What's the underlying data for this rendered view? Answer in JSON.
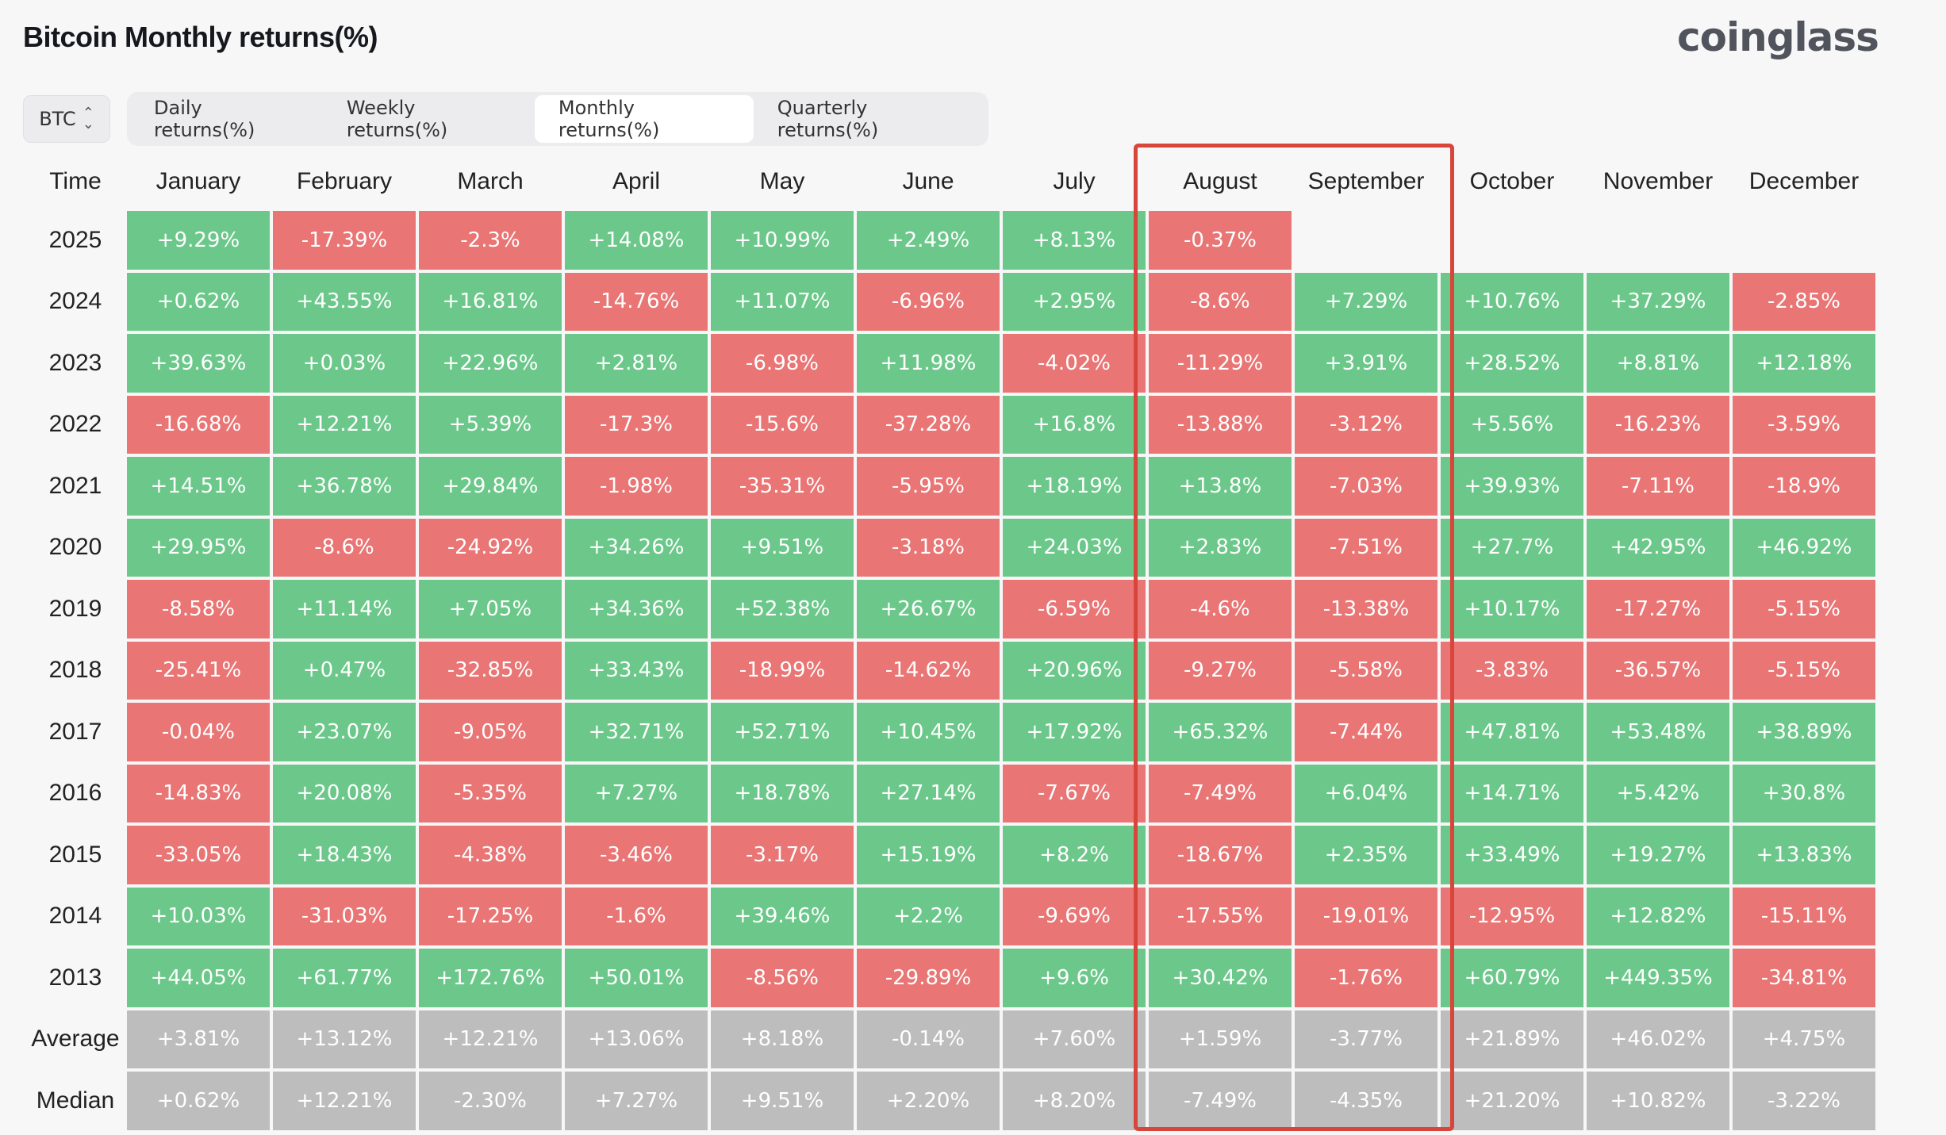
{
  "title": "Bitcoin Monthly returns(%)",
  "logo": "coinglass",
  "coin_select": {
    "value": "BTC",
    "icon": "up-down-chevron-icon"
  },
  "tabs": [
    {
      "label": "Daily returns(%)",
      "active": false
    },
    {
      "label": "Weekly returns(%)",
      "active": false
    },
    {
      "label": "Monthly returns(%)",
      "active": true
    },
    {
      "label": "Quarterly returns(%)",
      "active": false
    }
  ],
  "colors": {
    "positive": "#6cc88a",
    "negative": "#e97575",
    "stat": "#bdbdbd",
    "highlight": "#d8453b"
  },
  "table": {
    "columns": [
      "Time",
      "January",
      "February",
      "March",
      "April",
      "May",
      "June",
      "July",
      "August",
      "September",
      "October",
      "November",
      "December"
    ],
    "rows": [
      {
        "label": "2025",
        "values": [
          "+9.29%",
          "-17.39%",
          "-2.3%",
          "+14.08%",
          "+10.99%",
          "+2.49%",
          "+8.13%",
          "-0.37%",
          "",
          "",
          "",
          ""
        ]
      },
      {
        "label": "2024",
        "values": [
          "+0.62%",
          "+43.55%",
          "+16.81%",
          "-14.76%",
          "+11.07%",
          "-6.96%",
          "+2.95%",
          "-8.6%",
          "+7.29%",
          "+10.76%",
          "+37.29%",
          "-2.85%"
        ]
      },
      {
        "label": "2023",
        "values": [
          "+39.63%",
          "+0.03%",
          "+22.96%",
          "+2.81%",
          "-6.98%",
          "+11.98%",
          "-4.02%",
          "-11.29%",
          "+3.91%",
          "+28.52%",
          "+8.81%",
          "+12.18%"
        ]
      },
      {
        "label": "2022",
        "values": [
          "-16.68%",
          "+12.21%",
          "+5.39%",
          "-17.3%",
          "-15.6%",
          "-37.28%",
          "+16.8%",
          "-13.88%",
          "-3.12%",
          "+5.56%",
          "-16.23%",
          "-3.59%"
        ]
      },
      {
        "label": "2021",
        "values": [
          "+14.51%",
          "+36.78%",
          "+29.84%",
          "-1.98%",
          "-35.31%",
          "-5.95%",
          "+18.19%",
          "+13.8%",
          "-7.03%",
          "+39.93%",
          "-7.11%",
          "-18.9%"
        ]
      },
      {
        "label": "2020",
        "values": [
          "+29.95%",
          "-8.6%",
          "-24.92%",
          "+34.26%",
          "+9.51%",
          "-3.18%",
          "+24.03%",
          "+2.83%",
          "-7.51%",
          "+27.7%",
          "+42.95%",
          "+46.92%"
        ]
      },
      {
        "label": "2019",
        "values": [
          "-8.58%",
          "+11.14%",
          "+7.05%",
          "+34.36%",
          "+52.38%",
          "+26.67%",
          "-6.59%",
          "-4.6%",
          "-13.38%",
          "+10.17%",
          "-17.27%",
          "-5.15%"
        ]
      },
      {
        "label": "2018",
        "values": [
          "-25.41%",
          "+0.47%",
          "-32.85%",
          "+33.43%",
          "-18.99%",
          "-14.62%",
          "+20.96%",
          "-9.27%",
          "-5.58%",
          "-3.83%",
          "-36.57%",
          "-5.15%"
        ]
      },
      {
        "label": "2017",
        "values": [
          "-0.04%",
          "+23.07%",
          "-9.05%",
          "+32.71%",
          "+52.71%",
          "+10.45%",
          "+17.92%",
          "+65.32%",
          "-7.44%",
          "+47.81%",
          "+53.48%",
          "+38.89%"
        ]
      },
      {
        "label": "2016",
        "values": [
          "-14.83%",
          "+20.08%",
          "-5.35%",
          "+7.27%",
          "+18.78%",
          "+27.14%",
          "-7.67%",
          "-7.49%",
          "+6.04%",
          "+14.71%",
          "+5.42%",
          "+30.8%"
        ]
      },
      {
        "label": "2015",
        "values": [
          "-33.05%",
          "+18.43%",
          "-4.38%",
          "-3.46%",
          "-3.17%",
          "+15.19%",
          "+8.2%",
          "-18.67%",
          "+2.35%",
          "+33.49%",
          "+19.27%",
          "+13.83%"
        ]
      },
      {
        "label": "2014",
        "values": [
          "+10.03%",
          "-31.03%",
          "-17.25%",
          "-1.6%",
          "+39.46%",
          "+2.2%",
          "-9.69%",
          "-17.55%",
          "-19.01%",
          "-12.95%",
          "+12.82%",
          "-15.11%"
        ]
      },
      {
        "label": "2013",
        "values": [
          "+44.05%",
          "+61.77%",
          "+172.76%",
          "+50.01%",
          "-8.56%",
          "-29.89%",
          "+9.6%",
          "+30.42%",
          "-1.76%",
          "+60.79%",
          "+449.35%",
          "-34.81%"
        ]
      }
    ],
    "stats": [
      {
        "label": "Average",
        "values": [
          "+3.81%",
          "+13.12%",
          "+12.21%",
          "+13.06%",
          "+8.18%",
          "-0.14%",
          "+7.60%",
          "+1.59%",
          "-3.77%",
          "+21.89%",
          "+46.02%",
          "+4.75%"
        ]
      },
      {
        "label": "Median",
        "values": [
          "+0.62%",
          "+12.21%",
          "-2.30%",
          "+7.27%",
          "+9.51%",
          "+2.20%",
          "+8.20%",
          "-7.49%",
          "-4.35%",
          "+21.20%",
          "+10.82%",
          "-3.22%"
        ]
      }
    ]
  }
}
